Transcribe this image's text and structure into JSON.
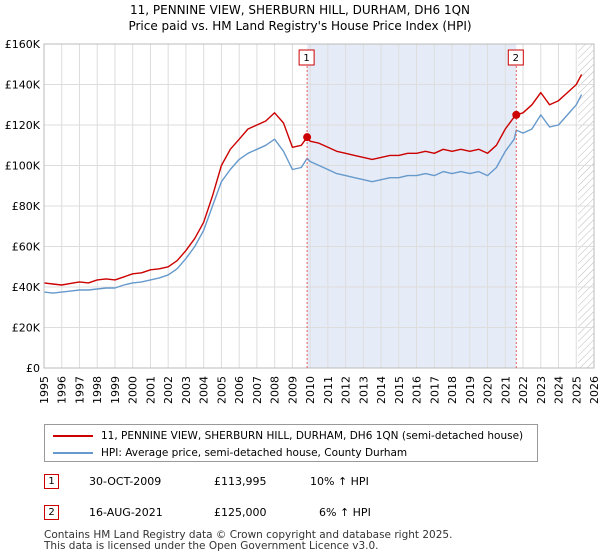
{
  "title_line1": "11, PENNINE VIEW, SHERBURN HILL, DURHAM, DH6 1QN",
  "title_line2": "Price paid vs. HM Land Registry's House Price Index (HPI)",
  "colors": {
    "property": "#cc0000",
    "hpi": "#6699cc",
    "shade": "#e6ecf7",
    "marker_line": "#e06060"
  },
  "chart_data": {
    "type": "line",
    "xlim": [
      1995,
      2026
    ],
    "ylim": [
      0,
      160000
    ],
    "x_ticks": [
      1995,
      1996,
      1997,
      1998,
      1999,
      2000,
      2001,
      2002,
      2003,
      2004,
      2005,
      2006,
      2007,
      2008,
      2009,
      2010,
      2011,
      2012,
      2013,
      2014,
      2015,
      2016,
      2017,
      2018,
      2019,
      2020,
      2021,
      2022,
      2023,
      2024,
      2025,
      2026
    ],
    "y_ticks": [
      {
        "value": 0,
        "label": "£0"
      },
      {
        "value": 20000,
        "label": "£20K"
      },
      {
        "value": 40000,
        "label": "£40K"
      },
      {
        "value": 60000,
        "label": "£60K"
      },
      {
        "value": 80000,
        "label": "£80K"
      },
      {
        "value": 100000,
        "label": "£100K"
      },
      {
        "value": 120000,
        "label": "£120K"
      },
      {
        "value": 140000,
        "label": "£140K"
      },
      {
        "value": 160000,
        "label": "£160K"
      }
    ],
    "shaded_range": [
      2009.83,
      2021.62
    ],
    "forecast_start": 2025.1,
    "sales": [
      {
        "label": "1",
        "x": 2009.83,
        "y": 113995
      },
      {
        "label": "2",
        "x": 2021.62,
        "y": 125000
      }
    ],
    "series": [
      {
        "name": "11, PENNINE VIEW, SHERBURN HILL, DURHAM, DH6 1QN (semi-detached house)",
        "color": "#cc0000",
        "points": [
          [
            1995.0,
            42000
          ],
          [
            1995.5,
            41500
          ],
          [
            1996.0,
            41000
          ],
          [
            1996.5,
            41800
          ],
          [
            1997.0,
            42500
          ],
          [
            1997.5,
            42000
          ],
          [
            1998.0,
            43500
          ],
          [
            1998.5,
            44000
          ],
          [
            1999.0,
            43500
          ],
          [
            1999.5,
            45000
          ],
          [
            2000.0,
            46500
          ],
          [
            2000.5,
            47000
          ],
          [
            2001.0,
            48500
          ],
          [
            2001.5,
            49000
          ],
          [
            2002.0,
            50000
          ],
          [
            2002.5,
            53000
          ],
          [
            2003.0,
            58000
          ],
          [
            2003.5,
            64000
          ],
          [
            2004.0,
            72000
          ],
          [
            2004.5,
            85000
          ],
          [
            2005.0,
            100000
          ],
          [
            2005.5,
            108000
          ],
          [
            2006.0,
            113000
          ],
          [
            2006.5,
            118000
          ],
          [
            2007.0,
            120000
          ],
          [
            2007.5,
            122000
          ],
          [
            2008.0,
            126000
          ],
          [
            2008.5,
            121000
          ],
          [
            2009.0,
            109000
          ],
          [
            2009.5,
            110000
          ],
          [
            2009.83,
            113995
          ],
          [
            2010.0,
            112000
          ],
          [
            2010.5,
            111000
          ],
          [
            2011.0,
            109000
          ],
          [
            2011.5,
            107000
          ],
          [
            2012.0,
            106000
          ],
          [
            2012.5,
            105000
          ],
          [
            2013.0,
            104000
          ],
          [
            2013.5,
            103000
          ],
          [
            2014.0,
            104000
          ],
          [
            2014.5,
            105000
          ],
          [
            2015.0,
            105000
          ],
          [
            2015.5,
            106000
          ],
          [
            2016.0,
            106000
          ],
          [
            2016.5,
            107000
          ],
          [
            2017.0,
            106000
          ],
          [
            2017.5,
            108000
          ],
          [
            2018.0,
            107000
          ],
          [
            2018.5,
            108000
          ],
          [
            2019.0,
            107000
          ],
          [
            2019.5,
            108000
          ],
          [
            2020.0,
            106000
          ],
          [
            2020.5,
            110000
          ],
          [
            2021.0,
            118000
          ],
          [
            2021.5,
            124000
          ],
          [
            2021.62,
            125000
          ],
          [
            2022.0,
            126000
          ],
          [
            2022.5,
            130000
          ],
          [
            2023.0,
            136000
          ],
          [
            2023.5,
            130000
          ],
          [
            2024.0,
            132000
          ],
          [
            2024.5,
            136000
          ],
          [
            2025.0,
            140000
          ],
          [
            2025.3,
            145000
          ]
        ]
      },
      {
        "name": "HPI: Average price, semi-detached house, County Durham",
        "color": "#6699cc",
        "points": [
          [
            1995.0,
            37500
          ],
          [
            1995.5,
            37000
          ],
          [
            1996.0,
            37500
          ],
          [
            1996.5,
            38000
          ],
          [
            1997.0,
            38500
          ],
          [
            1997.5,
            38500
          ],
          [
            1998.0,
            39000
          ],
          [
            1998.5,
            39500
          ],
          [
            1999.0,
            39500
          ],
          [
            1999.5,
            41000
          ],
          [
            2000.0,
            42000
          ],
          [
            2000.5,
            42500
          ],
          [
            2001.0,
            43500
          ],
          [
            2001.5,
            44500
          ],
          [
            2002.0,
            46000
          ],
          [
            2002.5,
            49000
          ],
          [
            2003.0,
            54000
          ],
          [
            2003.5,
            60000
          ],
          [
            2004.0,
            68000
          ],
          [
            2004.5,
            80000
          ],
          [
            2005.0,
            92000
          ],
          [
            2005.5,
            98000
          ],
          [
            2006.0,
            103000
          ],
          [
            2006.5,
            106000
          ],
          [
            2007.0,
            108000
          ],
          [
            2007.5,
            110000
          ],
          [
            2008.0,
            113000
          ],
          [
            2008.5,
            107000
          ],
          [
            2009.0,
            98000
          ],
          [
            2009.5,
            99000
          ],
          [
            2009.83,
            103500
          ],
          [
            2010.0,
            102000
          ],
          [
            2010.5,
            100000
          ],
          [
            2011.0,
            98000
          ],
          [
            2011.5,
            96000
          ],
          [
            2012.0,
            95000
          ],
          [
            2012.5,
            94000
          ],
          [
            2013.0,
            93000
          ],
          [
            2013.5,
            92000
          ],
          [
            2014.0,
            93000
          ],
          [
            2014.5,
            94000
          ],
          [
            2015.0,
            94000
          ],
          [
            2015.5,
            95000
          ],
          [
            2016.0,
            95000
          ],
          [
            2016.5,
            96000
          ],
          [
            2017.0,
            95000
          ],
          [
            2017.5,
            97000
          ],
          [
            2018.0,
            96000
          ],
          [
            2018.5,
            97000
          ],
          [
            2019.0,
            96000
          ],
          [
            2019.5,
            97000
          ],
          [
            2020.0,
            95000
          ],
          [
            2020.5,
            99000
          ],
          [
            2021.0,
            107000
          ],
          [
            2021.5,
            113000
          ],
          [
            2021.62,
            117500
          ],
          [
            2022.0,
            116000
          ],
          [
            2022.5,
            118000
          ],
          [
            2023.0,
            125000
          ],
          [
            2023.5,
            119000
          ],
          [
            2024.0,
            120000
          ],
          [
            2024.5,
            125000
          ],
          [
            2025.0,
            130000
          ],
          [
            2025.3,
            135000
          ]
        ]
      }
    ]
  },
  "legend": {
    "property_label": "11, PENNINE VIEW, SHERBURN HILL, DURHAM, DH6 1QN (semi-detached house)",
    "hpi_label": "HPI: Average price, semi-detached house, County Durham"
  },
  "annotations": [
    {
      "num": "1",
      "date": "30-OCT-2009",
      "price": "£113,995",
      "hpi": "10% ↑ HPI"
    },
    {
      "num": "2",
      "date": "16-AUG-2021",
      "price": "£125,000",
      "hpi": "6% ↑ HPI"
    }
  ],
  "footer_line1": "Contains HM Land Registry data © Crown copyright and database right 2025.",
  "footer_line2": "This data is licensed under the Open Government Licence v3.0."
}
